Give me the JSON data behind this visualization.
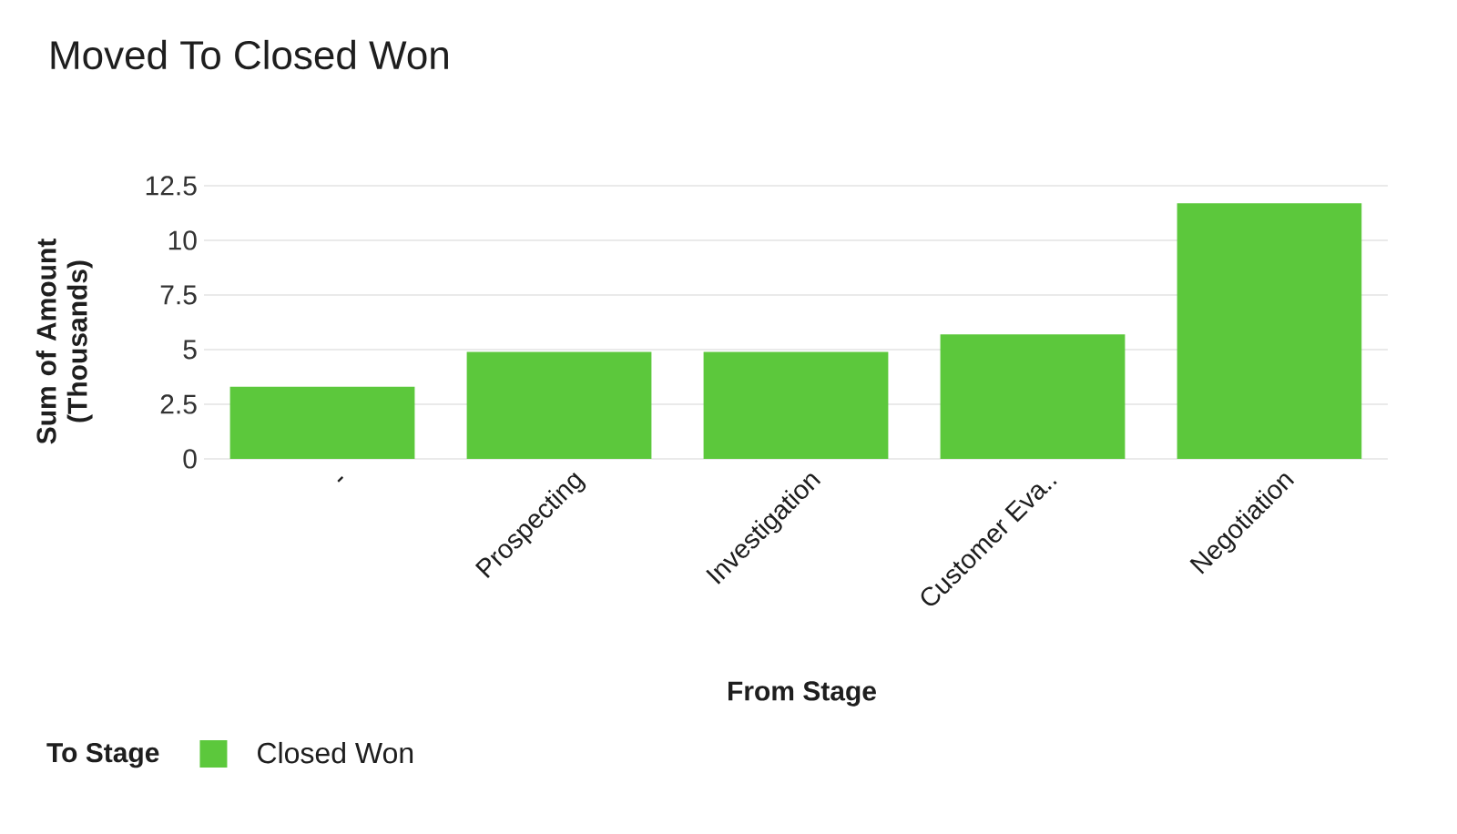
{
  "chart_data": {
    "type": "bar",
    "title": "Moved To Closed Won",
    "xlabel": "From Stage",
    "ylabel": "Sum of Amount (Thousands)",
    "legend_title": "To Stage",
    "categories": [
      "-",
      "Prospecting",
      "Investigation",
      "Customer Eva..",
      "Negotiation"
    ],
    "series": [
      {
        "name": "Closed Won",
        "color": "#5cc83c",
        "values": [
          3.3,
          4.9,
          4.9,
          5.7,
          11.7
        ]
      }
    ],
    "ylim": [
      0,
      12.5
    ],
    "yticks": [
      0,
      2.5,
      5,
      7.5,
      10,
      12.5
    ],
    "grid": "y",
    "legend": "bottom left"
  }
}
